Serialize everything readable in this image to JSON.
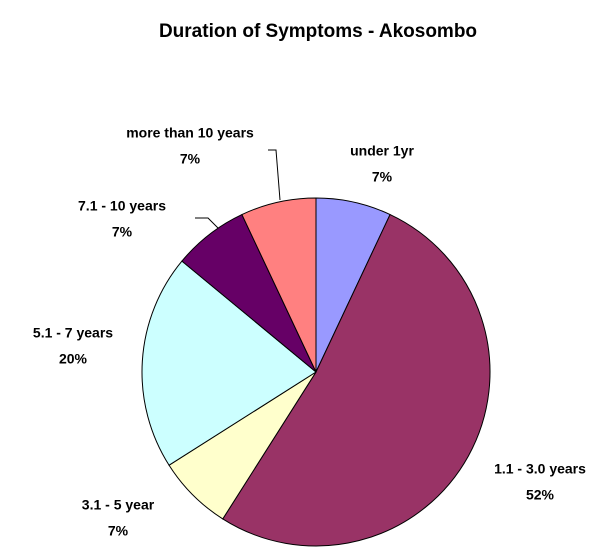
{
  "chart_data": {
    "type": "pie",
    "title": "Duration of Symptoms - Akosombo",
    "categories": [
      "under 1yr",
      "1.1 - 3.0 years",
      "3.1 - 5 year",
      "5.1 - 7 years",
      "7.1 - 10 years",
      "more than 10 years"
    ],
    "values": [
      7,
      52,
      7,
      20,
      7,
      7
    ],
    "value_labels": [
      "7%",
      "52%",
      "7%",
      "20%",
      "7%",
      "7%"
    ],
    "colors": [
      "#9999ff",
      "#993366",
      "#ffffcc",
      "#ccffff",
      "#660066",
      "#ff8080"
    ]
  }
}
